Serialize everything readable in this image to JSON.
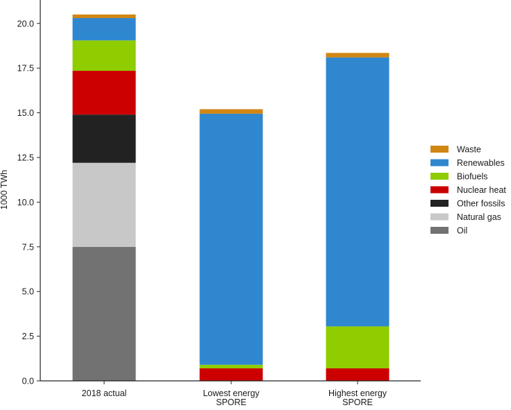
{
  "chart_data": {
    "type": "bar",
    "stacked": true,
    "categories": [
      "2018 actual",
      "Lowest energy\nSPORE",
      "Highest energy\nSPORE"
    ],
    "ylabel": "1000 TWh",
    "xlabel": "",
    "ylim": [
      0,
      21
    ],
    "yticks": [
      0.0,
      2.5,
      5.0,
      7.5,
      10.0,
      12.5,
      15.0,
      17.5,
      20.0
    ],
    "ytick_labels": [
      "0.0",
      "2.5",
      "5.0",
      "7.5",
      "10.0",
      "12.5",
      "15.0",
      "17.5",
      "20.0"
    ],
    "grid": false,
    "legend_position": "right",
    "series": [
      {
        "name": "Oil",
        "color": "#727272",
        "values": [
          7.5,
          0.0,
          0.0
        ]
      },
      {
        "name": "Natural gas",
        "color": "#c8c8c8",
        "values": [
          4.7,
          0.0,
          0.0
        ]
      },
      {
        "name": "Other fossils",
        "color": "#222222",
        "values": [
          2.7,
          0.0,
          0.0
        ]
      },
      {
        "name": "Nuclear heat",
        "color": "#cc0000",
        "values": [
          2.45,
          0.7,
          0.7
        ]
      },
      {
        "name": "Biofuels",
        "color": "#8fcc00",
        "values": [
          1.7,
          0.2,
          2.35
        ]
      },
      {
        "name": "Renewables",
        "color": "#2f87cf",
        "values": [
          1.25,
          14.05,
          15.05
        ]
      },
      {
        "name": "Waste",
        "color": "#d18614",
        "values": [
          0.2,
          0.25,
          0.25
        ]
      }
    ],
    "legend_order": [
      "Waste",
      "Renewables",
      "Biofuels",
      "Nuclear heat",
      "Other fossils",
      "Natural gas",
      "Oil"
    ]
  }
}
